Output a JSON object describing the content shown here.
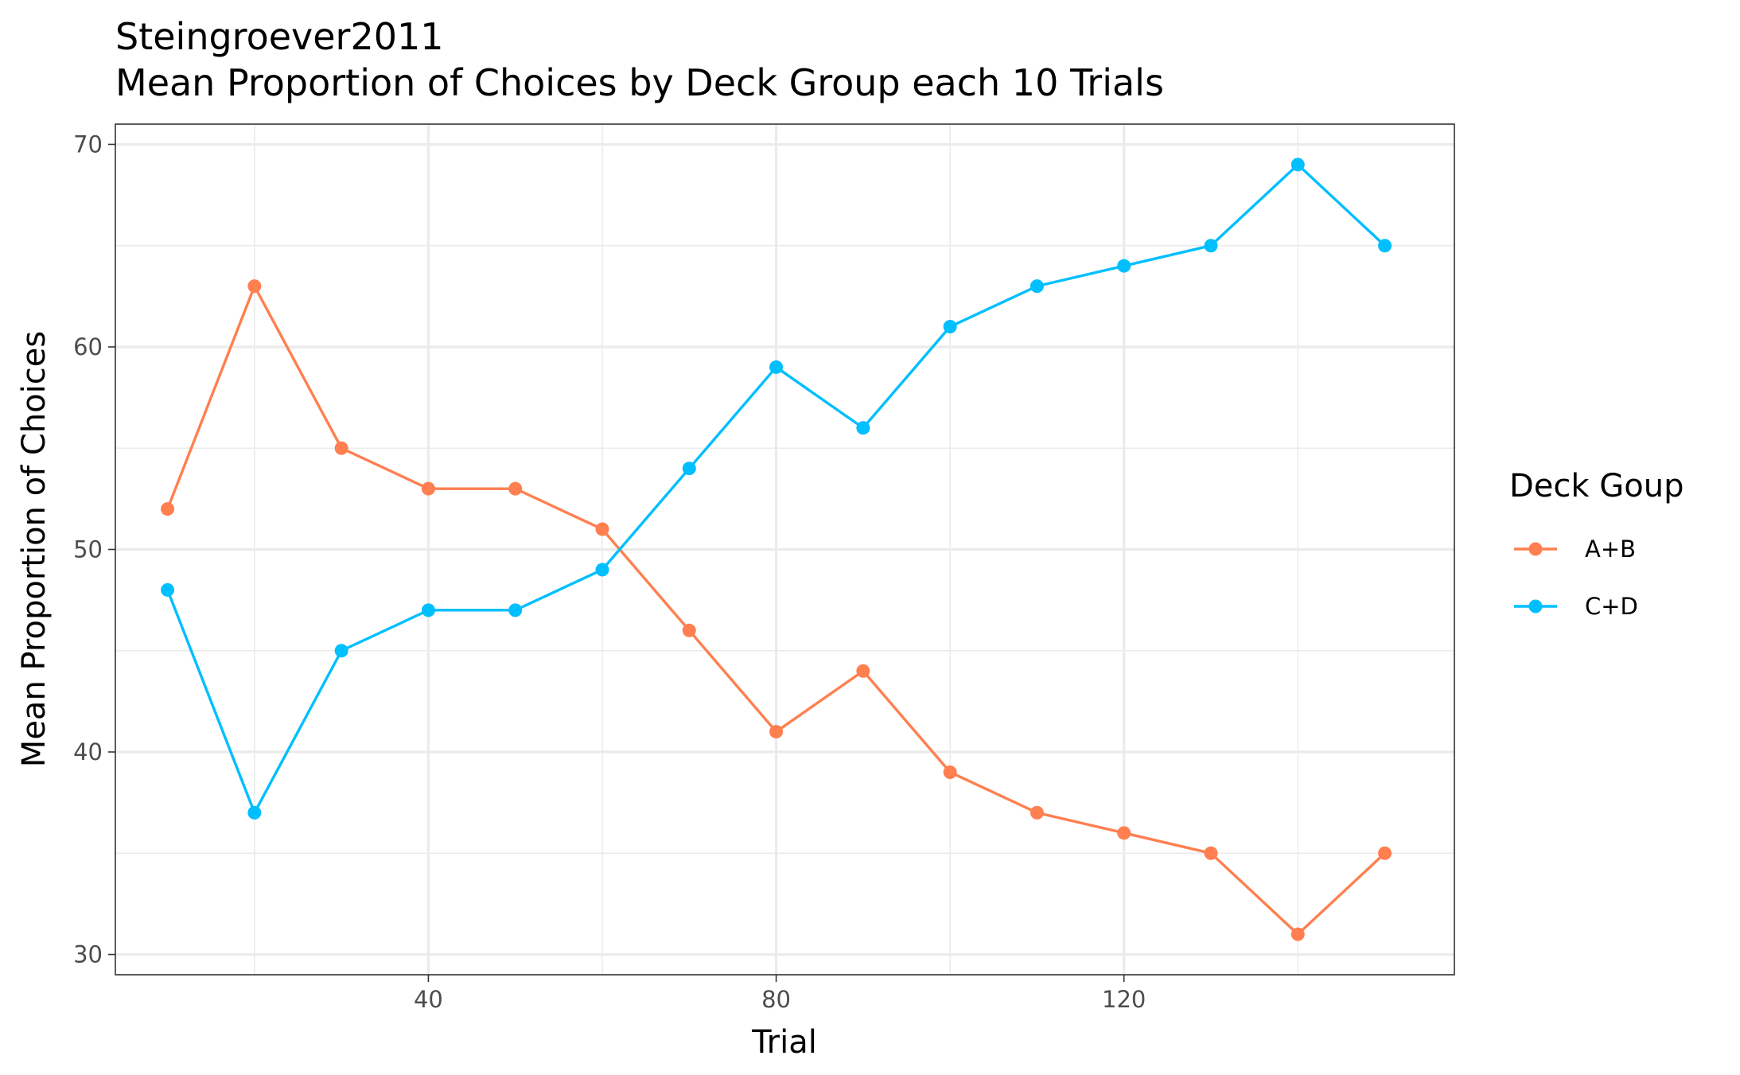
{
  "chart_data": {
    "type": "line",
    "title": "Steingroever2011",
    "subtitle": "Mean Proportion of Choices by Deck Group each 10 Trials",
    "xlabel": "Trial",
    "ylabel": "Mean Proportion of Choices",
    "xlim": [
      4,
      158
    ],
    "ylim": [
      29,
      71
    ],
    "x_ticks": [
      40,
      80,
      120
    ],
    "y_ticks": [
      30,
      40,
      50,
      60,
      70
    ],
    "x_minor_gridlines": [
      20,
      60,
      100,
      140
    ],
    "y_minor_gridlines": [
      35,
      45,
      55,
      65
    ],
    "grid": true,
    "legend_title": "Deck Goup",
    "legend_position": "right",
    "x": [
      10,
      20,
      30,
      40,
      50,
      60,
      70,
      80,
      90,
      100,
      110,
      120,
      130,
      140,
      150
    ],
    "series": [
      {
        "name": "A+B",
        "color": "#FF7F50",
        "values": [
          52,
          63,
          55,
          53,
          53,
          51,
          46,
          41,
          44,
          39,
          37,
          36,
          35,
          31,
          35
        ]
      },
      {
        "name": "C+D",
        "color": "#00BFFF",
        "values": [
          48,
          37,
          45,
          47,
          47,
          49,
          54,
          59,
          56,
          61,
          63,
          64,
          65,
          69,
          65
        ]
      }
    ]
  }
}
